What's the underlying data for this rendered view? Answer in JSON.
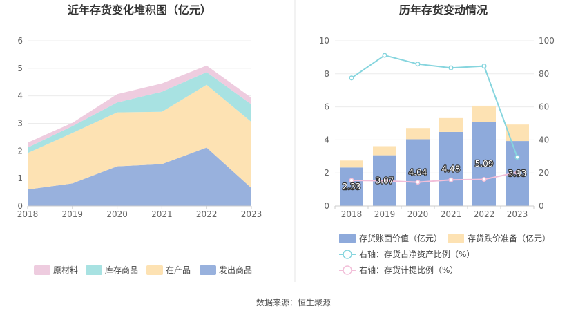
{
  "source": "数据来源：恒生聚源",
  "chart_data": [
    {
      "type": "area",
      "stacked": true,
      "title": "近年存货变化堆积图（亿元）",
      "categories": [
        "2018",
        "2019",
        "2020",
        "2021",
        "2022",
        "2023"
      ],
      "ylim": [
        0,
        6
      ],
      "yticks": [
        "0",
        "1",
        "2",
        "3",
        "4",
        "5",
        "6"
      ],
      "legend_position": "bottom",
      "series": [
        {
          "name": "发出商品",
          "color": "#98b1dd",
          "values": [
            0.6,
            0.82,
            1.44,
            1.52,
            2.12,
            0.65
          ]
        },
        {
          "name": "在产品",
          "color": "#fde2b3",
          "values": [
            1.32,
            1.83,
            1.96,
            1.9,
            2.28,
            2.4
          ]
        },
        {
          "name": "库存商品",
          "color": "#a8e2e2",
          "values": [
            0.2,
            0.25,
            0.36,
            0.73,
            0.46,
            0.64
          ]
        },
        {
          "name": "原材料",
          "color": "#eeccdf",
          "values": [
            0.18,
            0.12,
            0.3,
            0.3,
            0.24,
            0.24
          ]
        }
      ],
      "legend_order": [
        "原材料",
        "库存商品",
        "在产品",
        "发出商品"
      ]
    },
    {
      "type": "bar",
      "stacked": true,
      "title": "历年存货变动情况",
      "categories": [
        "2018",
        "2019",
        "2020",
        "2021",
        "2022",
        "2023"
      ],
      "ylim": [
        0,
        10
      ],
      "yticks": [
        "0",
        "2",
        "4",
        "6",
        "8",
        "10"
      ],
      "y2lim": [
        0,
        100
      ],
      "y2ticks": [
        "0",
        "20",
        "40",
        "60",
        "80",
        "100"
      ],
      "bar_series": [
        {
          "name": "存货账面价值（亿元）",
          "color": "#8eaadb",
          "values": [
            2.33,
            3.07,
            4.04,
            4.48,
            5.09,
            3.93
          ],
          "labels": [
            "2.33",
            "3.07",
            "4.04",
            "4.48",
            "5.09",
            "3.93"
          ]
        },
        {
          "name": "存货跌价准备（亿元）",
          "color": "#fde2b3",
          "values": [
            0.42,
            0.55,
            0.68,
            0.84,
            0.98,
            1.0
          ]
        }
      ],
      "line_series": [
        {
          "name": "右轴：存货占净资产比例（%）",
          "color": "#86d5de",
          "values": [
            77.5,
            91.2,
            85.9,
            83.6,
            84.7,
            29.5
          ]
        },
        {
          "name": "右轴：存货计提比例（%）",
          "color": "#f2bfd9",
          "values": [
            15.5,
            15.2,
            14.4,
            15.8,
            16.1,
            20.3
          ]
        }
      ],
      "legend_position": "bottom"
    }
  ]
}
